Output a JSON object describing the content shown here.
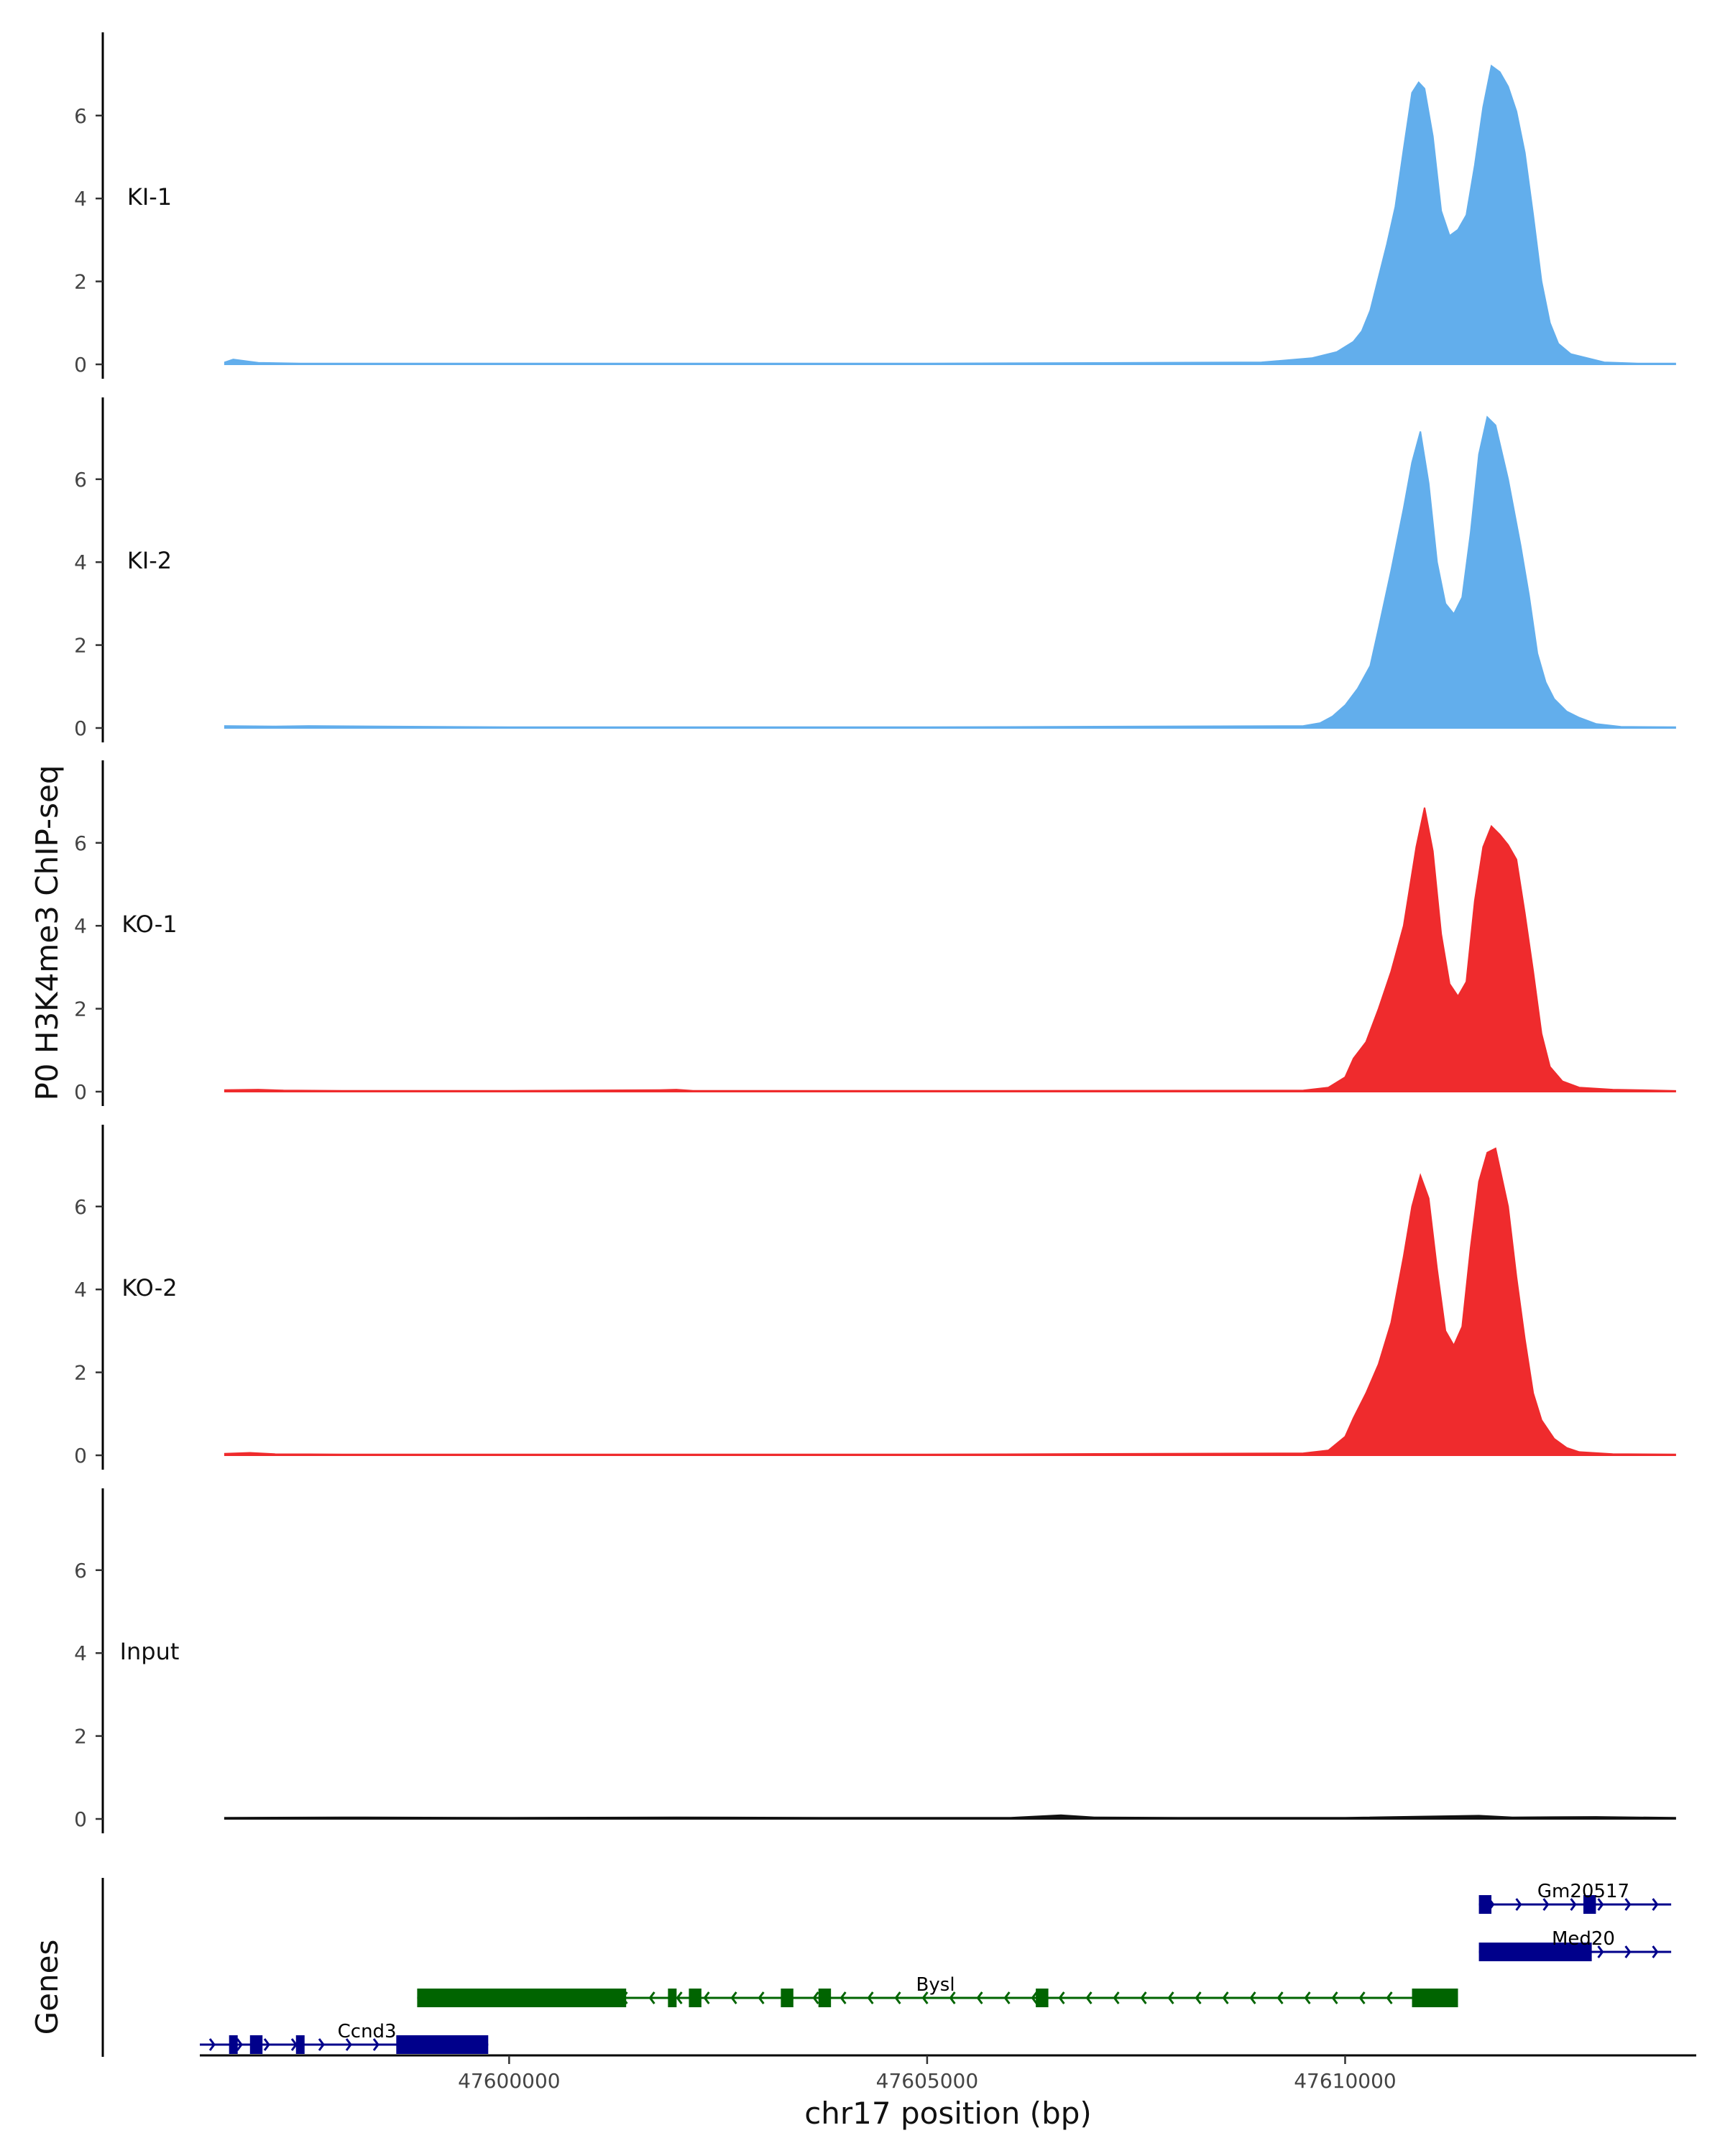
{
  "chart_data": {
    "type": "area",
    "ylabel": "P0 H3K4me3 ChIP-seq",
    "xlabel": "chr17 position (bp)",
    "xlim": [
      47596300,
      47614200
    ],
    "ylim": [
      0,
      7.8
    ],
    "y_ticks": [
      0,
      2,
      4,
      6
    ],
    "x_ticks": [
      47600000,
      47605000,
      47610000
    ],
    "x_tick_labels": [
      "47600000",
      "47605000",
      "47610000"
    ],
    "tracks": [
      {
        "name": "KI-1",
        "color": "#62aeec",
        "points": [
          [
            47596600,
            0.05
          ],
          [
            47596700,
            0.12
          ],
          [
            47597000,
            0.04
          ],
          [
            47597500,
            0.02
          ],
          [
            47600000,
            0.02
          ],
          [
            47605000,
            0.02
          ],
          [
            47609000,
            0.05
          ],
          [
            47609600,
            0.15
          ],
          [
            47609900,
            0.3
          ],
          [
            47610100,
            0.55
          ],
          [
            47610200,
            0.8
          ],
          [
            47610300,
            1.3
          ],
          [
            47610400,
            2.1
          ],
          [
            47610500,
            2.9
          ],
          [
            47610600,
            3.8
          ],
          [
            47610700,
            5.2
          ],
          [
            47610800,
            6.55
          ],
          [
            47610880,
            6.8
          ],
          [
            47610950,
            6.65
          ],
          [
            47611050,
            5.5
          ],
          [
            47611150,
            3.7
          ],
          [
            47611250,
            3.1
          ],
          [
            47611350,
            3.25
          ],
          [
            47611450,
            3.6
          ],
          [
            47611550,
            4.8
          ],
          [
            47611650,
            6.2
          ],
          [
            47611750,
            7.2
          ],
          [
            47611850,
            7.05
          ],
          [
            47611950,
            6.7
          ],
          [
            47612050,
            6.1
          ],
          [
            47612150,
            5.1
          ],
          [
            47612250,
            3.6
          ],
          [
            47612350,
            2.0
          ],
          [
            47612450,
            1.0
          ],
          [
            47612550,
            0.5
          ],
          [
            47612700,
            0.25
          ],
          [
            47612900,
            0.15
          ],
          [
            47613100,
            0.05
          ],
          [
            47613500,
            0.02
          ],
          [
            47613950,
            0.02
          ]
        ]
      },
      {
        "name": "KI-2",
        "color": "#62aeec",
        "points": [
          [
            47596600,
            0.05
          ],
          [
            47597200,
            0.04
          ],
          [
            47597600,
            0.05
          ],
          [
            47600000,
            0.02
          ],
          [
            47605000,
            0.02
          ],
          [
            47609500,
            0.05
          ],
          [
            47609700,
            0.12
          ],
          [
            47609850,
            0.28
          ],
          [
            47610000,
            0.55
          ],
          [
            47610150,
            0.95
          ],
          [
            47610300,
            1.5
          ],
          [
            47610400,
            2.4
          ],
          [
            47610550,
            3.8
          ],
          [
            47610700,
            5.3
          ],
          [
            47610800,
            6.4
          ],
          [
            47610900,
            7.15
          ],
          [
            47611000,
            5.9
          ],
          [
            47611100,
            4.0
          ],
          [
            47611200,
            3.0
          ],
          [
            47611300,
            2.75
          ],
          [
            47611400,
            3.15
          ],
          [
            47611500,
            4.7
          ],
          [
            47611600,
            6.6
          ],
          [
            47611700,
            7.5
          ],
          [
            47611800,
            7.3
          ],
          [
            47611950,
            6.0
          ],
          [
            47612100,
            4.4
          ],
          [
            47612200,
            3.2
          ],
          [
            47612300,
            1.8
          ],
          [
            47612400,
            1.1
          ],
          [
            47612500,
            0.7
          ],
          [
            47612650,
            0.4
          ],
          [
            47612800,
            0.25
          ],
          [
            47613000,
            0.1
          ],
          [
            47613300,
            0.03
          ],
          [
            47613950,
            0.02
          ]
        ]
      },
      {
        "name": "KO-1",
        "color": "#ef2b2d",
        "points": [
          [
            47596600,
            0.04
          ],
          [
            47597000,
            0.05
          ],
          [
            47597300,
            0.03
          ],
          [
            47598000,
            0.02
          ],
          [
            47600000,
            0.02
          ],
          [
            47601800,
            0.04
          ],
          [
            47602000,
            0.05
          ],
          [
            47602200,
            0.02
          ],
          [
            47605000,
            0.02
          ],
          [
            47609500,
            0.03
          ],
          [
            47609800,
            0.1
          ],
          [
            47610000,
            0.35
          ],
          [
            47610100,
            0.8
          ],
          [
            47610250,
            1.2
          ],
          [
            47610400,
            2.0
          ],
          [
            47610550,
            2.9
          ],
          [
            47610700,
            4.0
          ],
          [
            47610850,
            5.9
          ],
          [
            47610950,
            6.85
          ],
          [
            47611050,
            5.8
          ],
          [
            47611150,
            3.8
          ],
          [
            47611250,
            2.6
          ],
          [
            47611350,
            2.3
          ],
          [
            47611450,
            2.65
          ],
          [
            47611550,
            4.6
          ],
          [
            47611650,
            5.9
          ],
          [
            47611750,
            6.4
          ],
          [
            47611850,
            6.2
          ],
          [
            47611950,
            5.95
          ],
          [
            47612050,
            5.6
          ],
          [
            47612150,
            4.3
          ],
          [
            47612250,
            2.9
          ],
          [
            47612350,
            1.4
          ],
          [
            47612450,
            0.6
          ],
          [
            47612600,
            0.25
          ],
          [
            47612800,
            0.1
          ],
          [
            47613200,
            0.05
          ],
          [
            47613500,
            0.04
          ],
          [
            47613950,
            0.02
          ]
        ]
      },
      {
        "name": "KO-2",
        "color": "#ef2b2d",
        "points": [
          [
            47596600,
            0.04
          ],
          [
            47596900,
            0.06
          ],
          [
            47597200,
            0.03
          ],
          [
            47598000,
            0.02
          ],
          [
            47600000,
            0.02
          ],
          [
            47605000,
            0.02
          ],
          [
            47609500,
            0.05
          ],
          [
            47609800,
            0.12
          ],
          [
            47610000,
            0.45
          ],
          [
            47610100,
            0.9
          ],
          [
            47610250,
            1.5
          ],
          [
            47610400,
            2.2
          ],
          [
            47610550,
            3.2
          ],
          [
            47610700,
            4.8
          ],
          [
            47610800,
            6.0
          ],
          [
            47610900,
            6.75
          ],
          [
            47611000,
            6.2
          ],
          [
            47611100,
            4.5
          ],
          [
            47611200,
            3.0
          ],
          [
            47611300,
            2.65
          ],
          [
            47611400,
            3.1
          ],
          [
            47611500,
            5.0
          ],
          [
            47611600,
            6.6
          ],
          [
            47611700,
            7.3
          ],
          [
            47611800,
            7.4
          ],
          [
            47611950,
            6.0
          ],
          [
            47612050,
            4.3
          ],
          [
            47612150,
            2.8
          ],
          [
            47612250,
            1.5
          ],
          [
            47612350,
            0.85
          ],
          [
            47612500,
            0.4
          ],
          [
            47612650,
            0.18
          ],
          [
            47612800,
            0.08
          ],
          [
            47613200,
            0.03
          ],
          [
            47613950,
            0.02
          ]
        ]
      },
      {
        "name": "Input",
        "color": "#111111",
        "points": [
          [
            47596600,
            0.03
          ],
          [
            47598000,
            0.04
          ],
          [
            47600000,
            0.03
          ],
          [
            47602000,
            0.04
          ],
          [
            47604000,
            0.03
          ],
          [
            47606000,
            0.03
          ],
          [
            47606600,
            0.09
          ],
          [
            47607000,
            0.04
          ],
          [
            47608000,
            0.03
          ],
          [
            47610000,
            0.03
          ],
          [
            47611600,
            0.08
          ],
          [
            47612000,
            0.04
          ],
          [
            47613000,
            0.05
          ],
          [
            47613950,
            0.03
          ]
        ]
      }
    ],
    "genes_track": {
      "label": "Genes",
      "genes": [
        {
          "name": "Gm20517",
          "strand": "+",
          "color": "#00008b",
          "row": 1,
          "start": 47611600,
          "end": 47613900,
          "exons": [
            [
              47611600,
              47611750
            ],
            [
              47612850,
              47613000
            ]
          ]
        },
        {
          "name": "Med20",
          "strand": "+",
          "color": "#00008b",
          "row": 2,
          "start": 47611600,
          "end": 47613900,
          "exons": [
            [
              47611600,
              47612950
            ]
          ]
        },
        {
          "name": "Bysl",
          "strand": "-",
          "color": "#006400",
          "row": 3,
          "start": 47598900,
          "end": 47611350,
          "exons": [
            [
              47598900,
              47601400
            ],
            [
              47601900,
              47602000
            ],
            [
              47602150,
              47602300
            ],
            [
              47603250,
              47603400
            ],
            [
              47603700,
              47603850
            ],
            [
              47606300,
              47606450
            ],
            [
              47610800,
              47611350
            ]
          ]
        },
        {
          "name": "Ccnd3",
          "strand": "+",
          "color": "#00008b",
          "row": 4,
          "start": 47596300,
          "end": 47599750,
          "exons": [
            [
              47596650,
              47596720
            ],
            [
              47596900,
              47597050
            ],
            [
              47597450,
              47597550
            ],
            [
              47598650,
              47599750
            ]
          ]
        }
      ]
    }
  }
}
